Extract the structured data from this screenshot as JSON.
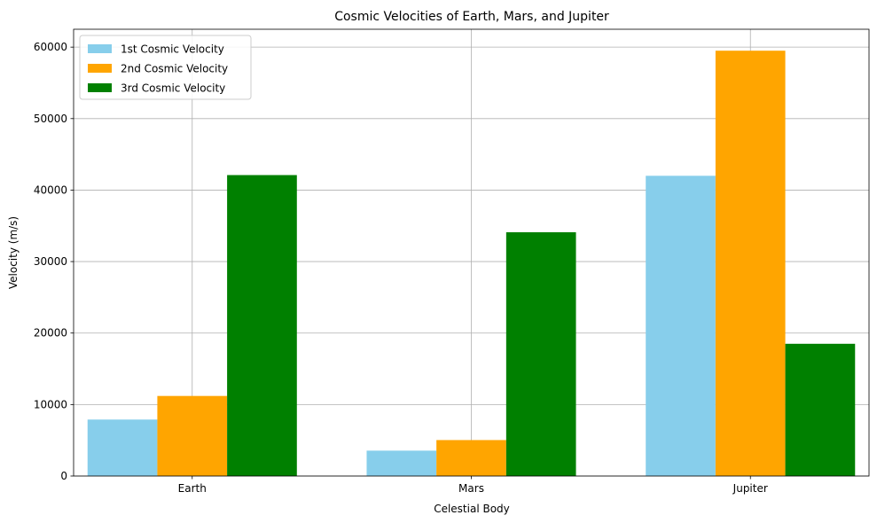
{
  "chart_data": {
    "type": "bar",
    "title": "Cosmic Velocities of Earth, Mars, and Jupiter",
    "xlabel": "Celestial Body",
    "ylabel": "Velocity (m/s)",
    "categories": [
      "Earth",
      "Mars",
      "Jupiter"
    ],
    "series": [
      {
        "name": "1st Cosmic Velocity",
        "color": "#87ceeb",
        "values": [
          7900,
          3550,
          42000
        ]
      },
      {
        "name": "2nd Cosmic Velocity",
        "color": "#ffa500",
        "values": [
          11200,
          5030,
          59500
        ]
      },
      {
        "name": "3rd Cosmic Velocity",
        "color": "#008000",
        "values": [
          42100,
          34100,
          18500
        ]
      }
    ],
    "ylim": [
      0,
      62500
    ],
    "yticks": [
      0,
      10000,
      20000,
      30000,
      40000,
      50000,
      60000
    ],
    "grid": true,
    "legend_position": "top-left"
  }
}
